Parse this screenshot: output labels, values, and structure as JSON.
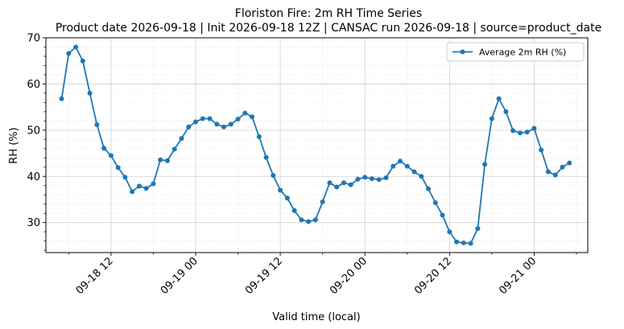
{
  "chart_data": {
    "type": "line",
    "title": "Floriston Fire: 2m RH Time Series",
    "subtitle": "Product date 2026-09-18 | Init 2026-09-18 12Z | CANSAC run 2026-09-18 | source=product_date",
    "xlabel": "Valid time (local)",
    "ylabel": "RH (%)",
    "ylim": [
      23.5,
      70
    ],
    "yticks": [
      30,
      40,
      50,
      60,
      70
    ],
    "x_axis": {
      "type": "datetime",
      "range": [
        "2026-09-18 02:46",
        "2026-09-21 07:36"
      ],
      "tick_labels": [
        {
          "at": "2026-09-18 12:00",
          "label": "09-18 12"
        },
        {
          "at": "2026-09-19 00:00",
          "label": "09-19 00"
        },
        {
          "at": "2026-09-19 12:00",
          "label": "09-19 12"
        },
        {
          "at": "2026-09-20 00:00",
          "label": "09-20 00"
        },
        {
          "at": "2026-09-20 12:00",
          "label": "09-20 12"
        },
        {
          "at": "2026-09-21 00:00",
          "label": "09-21 00"
        }
      ]
    },
    "grid": true,
    "legend_position": "top-right",
    "color": "#1f77b4",
    "series": [
      {
        "name": "Average 2m RH (%)",
        "start": "2026-09-18 05:00",
        "step_hours": 1,
        "values": [
          56.8,
          66.6,
          68.0,
          65.0,
          58.0,
          51.2,
          46.1,
          44.5,
          41.9,
          39.8,
          36.7,
          37.9,
          37.4,
          38.4,
          43.6,
          43.4,
          45.9,
          48.2,
          50.7,
          51.8,
          52.5,
          52.5,
          51.3,
          50.7,
          51.3,
          52.4,
          53.7,
          52.9,
          48.6,
          44.1,
          40.2,
          37.0,
          35.3,
          32.6,
          30.6,
          30.2,
          30.6,
          34.5,
          38.6,
          37.7,
          38.6,
          38.2,
          39.4,
          39.8,
          39.5,
          39.3,
          39.7,
          42.2,
          43.3,
          42.2,
          41.0,
          40.0,
          37.3,
          34.3,
          31.6,
          28.0,
          25.8,
          25.6,
          25.5,
          28.7,
          42.6,
          52.5,
          56.8,
          54.0,
          49.9,
          49.4,
          49.6,
          50.4,
          45.7,
          41.0,
          40.3,
          42.0,
          42.9
        ]
      }
    ]
  }
}
